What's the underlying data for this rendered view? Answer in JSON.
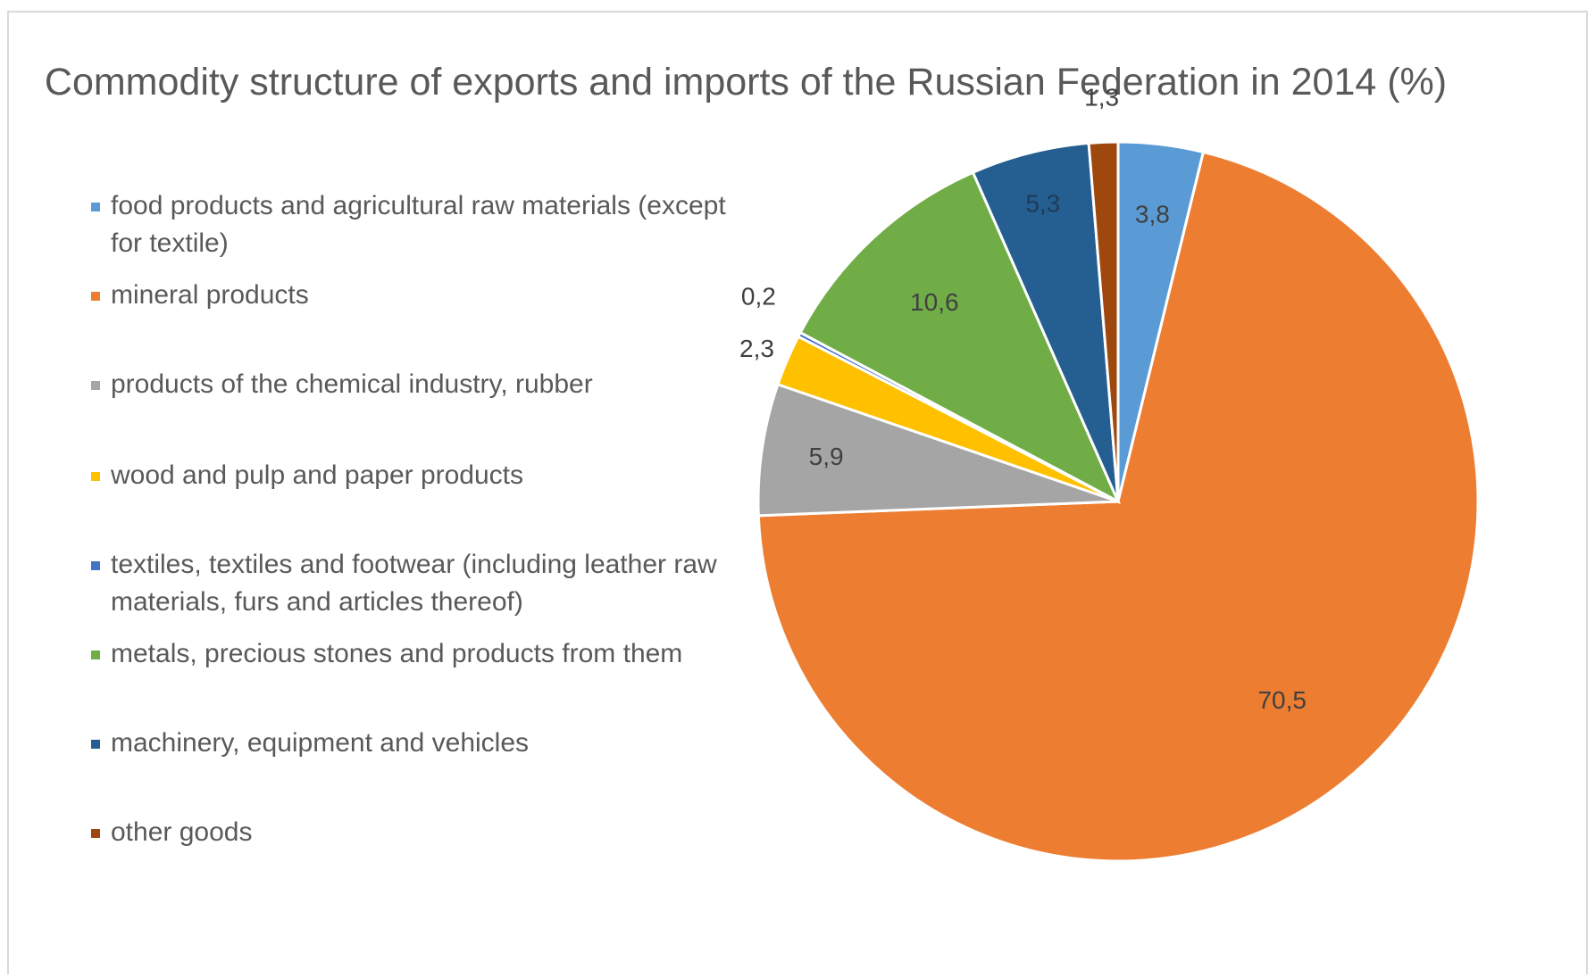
{
  "chart_data": {
    "type": "pie",
    "title": "Commodity structure of exports and imports of the Russian Federation in 2014 (%)",
    "legend_position": "left",
    "categories": [
      "food products and agricultural raw materials (except for textile)",
      "mineral products",
      "products of the chemical industry, rubber",
      "wood and pulp and paper products",
      "textiles, textiles and footwear (including leather raw materials, furs and articles thereof)",
      "metals, precious stones and products from them",
      "machinery, equipment and vehicles",
      "other goods"
    ],
    "values": [
      3.8,
      70.5,
      5.9,
      2.3,
      0.2,
      10.6,
      5.3,
      1.3
    ],
    "value_labels": [
      "3,8",
      "70,5",
      "5,9",
      "2,3",
      "0,2",
      "10,6",
      "5,3",
      "1,3"
    ],
    "colors": [
      "#5b9bd5",
      "#ed7d31",
      "#a5a5a5",
      "#ffc000",
      "#4472c4",
      "#70ad47",
      "#255e91",
      "#9e480e"
    ]
  }
}
